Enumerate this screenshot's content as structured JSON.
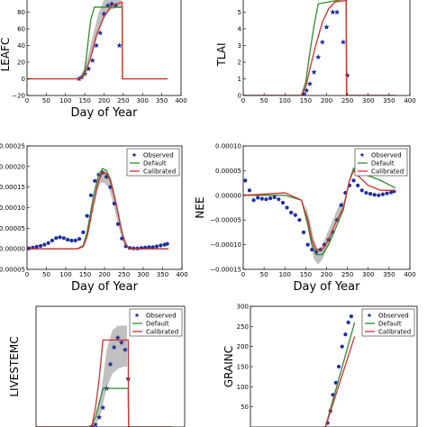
{
  "chart_data": [
    {
      "type": "line",
      "ylabel": "LEAFC",
      "xlabel": "Day of Year",
      "xlim": [
        0,
        400
      ],
      "ylim": [
        -20,
        100
      ],
      "xticks": [
        "0",
        "50",
        "100",
        "150",
        "200",
        "250",
        "300",
        "350",
        "400"
      ],
      "yticks": [
        "−20",
        "0",
        "20",
        "40",
        "60",
        "80"
      ],
      "legend": [],
      "band": {
        "x": [
          140,
          155,
          170,
          185,
          200,
          215,
          230,
          245
        ],
        "lo": [
          2,
          10,
          30,
          55,
          72,
          82,
          85,
          85
        ],
        "hi": [
          4,
          20,
          50,
          78,
          95,
          100,
          100,
          100
        ]
      },
      "series": [
        {
          "name": "Observed",
          "style": "star",
          "x": [
            135,
            142,
            150,
            160,
            170,
            180,
            190,
            200,
            210,
            220,
            230,
            240
          ],
          "y": [
            0,
            2,
            6,
            12,
            22,
            40,
            55,
            78,
            88,
            90,
            88,
            40
          ]
        },
        {
          "name": "Default",
          "style": "line",
          "x": [
            0,
            140,
            150,
            165,
            175,
            247,
            248,
            365
          ],
          "y": [
            0,
            0,
            10,
            70,
            86,
            86,
            0,
            0
          ]
        },
        {
          "name": "Calibrated",
          "style": "line",
          "x": [
            0,
            140,
            150,
            165,
            180,
            200,
            220,
            247,
            248,
            365
          ],
          "y": [
            0,
            0,
            6,
            25,
            52,
            75,
            88,
            92,
            0,
            0
          ]
        }
      ]
    },
    {
      "type": "line",
      "ylabel": "TLAI",
      "xlabel": "",
      "xlim": [
        0,
        400
      ],
      "ylim": [
        0,
        6
      ],
      "xticks": [
        "0",
        "50",
        "100",
        "150",
        "200",
        "250",
        "300",
        "350",
        "400"
      ],
      "yticks": [
        "0",
        "1",
        "2",
        "3",
        "4",
        "5"
      ],
      "legend": [],
      "band": null,
      "series": [
        {
          "name": "Observed",
          "style": "star",
          "x": [
            145,
            152,
            160,
            170,
            180,
            190,
            200,
            215,
            225,
            240,
            250
          ],
          "y": [
            0.1,
            0.3,
            0.7,
            1.4,
            2.3,
            3.2,
            4.1,
            5.0,
            5.0,
            3.2,
            1.2
          ]
        },
        {
          "name": "Default",
          "style": "line",
          "x": [
            0,
            140,
            150,
            160,
            170,
            180,
            247,
            248,
            365
          ],
          "y": [
            0,
            0,
            0.8,
            2.6,
            4.2,
            5.5,
            5.8,
            0,
            0
          ]
        },
        {
          "name": "Calibrated",
          "style": "line",
          "x": [
            0,
            140,
            150,
            160,
            175,
            190,
            205,
            220,
            247,
            248,
            365
          ],
          "y": [
            0,
            0,
            0.5,
            1.6,
            3.1,
            4.4,
            5.2,
            5.6,
            5.7,
            0,
            0
          ]
        }
      ]
    },
    {
      "type": "line",
      "ylabel": "GPP",
      "xlabel": "Day of Year",
      "xlim": [
        0,
        400
      ],
      "ylim": [
        -5e-05,
        0.00025
      ],
      "xticks": [
        "0",
        "50",
        "100",
        "150",
        "200",
        "250",
        "300",
        "350",
        "400"
      ],
      "yticks": [
        "−0.00005",
        "0.00000",
        "0.00005",
        "0.00010",
        "0.00015",
        "0.00020",
        "0.00025"
      ],
      "legend": [
        "Observed",
        "Default",
        "Calibrated"
      ],
      "band": {
        "x": [
          150,
          160,
          170,
          180,
          190,
          200,
          210,
          220,
          230,
          240,
          250,
          260
        ],
        "lo": [
          1e-05,
          4e-05,
          0.0001,
          0.00014,
          0.00016,
          0.00016,
          0.00015,
          0.00012,
          8e-05,
          4e-05,
          1e-05,
          5e-06
        ],
        "hi": [
          2e-05,
          6e-05,
          0.00013,
          0.00017,
          0.00019,
          0.00019,
          0.00018,
          0.00016,
          0.00012,
          7e-05,
          3e-05,
          1e-05
        ]
      },
      "series": [
        {
          "name": "Observed",
          "style": "dots",
          "x": [
            5,
            15,
            25,
            35,
            45,
            55,
            65,
            75,
            85,
            95,
            105,
            115,
            125,
            135,
            145,
            155,
            165,
            175,
            185,
            195,
            205,
            215,
            225,
            235,
            245,
            255,
            265,
            275,
            285,
            295,
            305,
            315,
            325,
            335,
            345,
            355,
            362
          ],
          "y": [
            1e-06,
            3e-06,
            5e-06,
            7e-06,
            1e-05,
            1.4e-05,
            2e-05,
            2.6e-05,
            2.8e-05,
            2.6e-05,
            2.2e-05,
            2e-05,
            2e-05,
            2.4e-05,
            4e-05,
            8e-05,
            0.00013,
            0.000165,
            0.00018,
            0.000185,
            0.000175,
            0.00015,
            0.00011,
            6e-05,
            2.5e-05,
            6e-06,
            2e-06,
            1e-06,
            1e-06,
            2e-06,
            3e-06,
            4e-06,
            4e-06,
            6e-06,
            8e-06,
            1e-05,
            1.2e-05
          ]
        },
        {
          "name": "Default",
          "style": "line",
          "x": [
            0,
            130,
            145,
            155,
            170,
            185,
            195,
            205,
            215,
            230,
            245,
            255,
            265,
            365
          ],
          "y": [
            0,
            0,
            8e-06,
            4e-05,
            0.00012,
            0.00018,
            0.000195,
            0.00019,
            0.00017,
            0.00011,
            4e-05,
            1e-05,
            0,
            0
          ]
        },
        {
          "name": "Calibrated",
          "style": "line",
          "x": [
            0,
            130,
            145,
            155,
            170,
            185,
            195,
            205,
            215,
            230,
            245,
            255,
            265,
            365
          ],
          "y": [
            0,
            0,
            5e-06,
            3e-05,
            0.0001,
            0.000165,
            0.000185,
            0.000183,
            0.000165,
            0.00011,
            4e-05,
            1e-05,
            0,
            0
          ]
        }
      ]
    },
    {
      "type": "line",
      "ylabel": "NEE",
      "xlabel": "Day of Year",
      "xlim": [
        0,
        400
      ],
      "ylim": [
        -0.00015,
        0.0001
      ],
      "xticks": [
        "0",
        "50",
        "100",
        "150",
        "200",
        "250",
        "300",
        "350",
        "400"
      ],
      "yticks": [
        "−0.00015",
        "−0.00010",
        "−0.00005",
        "0.00000",
        "0.00005",
        "0.00010"
      ],
      "legend": [
        "Observed",
        "Default",
        "Calibrated"
      ],
      "band": {
        "x": [
          150,
          160,
          170,
          180,
          190,
          200,
          210,
          220,
          230,
          240
        ],
        "lo": [
          -4e-05,
          -9e-05,
          -0.00013,
          -0.00014,
          -0.00013,
          -0.00011,
          -9e-05,
          -6e-05,
          -4e-05,
          -2e-05
        ],
        "hi": [
          -2e-05,
          -5e-05,
          -9e-05,
          -0.00011,
          -0.0001,
          -8e-05,
          -6e-05,
          -4e-05,
          -2e-05,
          -1e-05
        ]
      },
      "series": [
        {
          "name": "Observed",
          "style": "dots",
          "x": [
            5,
            15,
            25,
            35,
            45,
            55,
            65,
            75,
            85,
            95,
            105,
            115,
            125,
            135,
            145,
            155,
            165,
            175,
            185,
            195,
            205,
            215,
            225,
            235,
            245,
            255,
            265,
            275,
            285,
            295,
            305,
            315,
            325,
            335,
            345,
            355,
            362
          ],
          "y": [
            3e-05,
            1e-05,
            -1e-05,
            -5e-06,
            -7e-06,
            -8e-06,
            -6e-06,
            -4e-06,
            -8e-06,
            -1.5e-05,
            -2.5e-05,
            -3.5e-05,
            -4e-05,
            -5e-05,
            -7.5e-05,
            -0.0001,
            -0.00011,
            -0.000115,
            -0.00011,
            -0.0001,
            -9e-05,
            -7.5e-05,
            -5e-05,
            -2e-05,
            5e-06,
            2e-05,
            3e-05,
            2e-05,
            1e-05,
            5e-06,
            3e-06,
            1e-06,
            0,
            2e-06,
            4e-06,
            6e-06,
            8e-06
          ]
        },
        {
          "name": "Default",
          "style": "line",
          "x": [
            0,
            100,
            140,
            155,
            165,
            175,
            190,
            205,
            220,
            240,
            255,
            265,
            275,
            300,
            330,
            365
          ],
          "y": [
            0,
            0,
            -1e-05,
            -6e-05,
            -0.0001,
            -0.00012,
            -0.00012,
            -0.0001,
            -7e-05,
            -3e-05,
            3e-05,
            5.5e-05,
            4.5e-05,
            4e-05,
            3e-05,
            1.5e-05
          ]
        },
        {
          "name": "Calibrated",
          "style": "line",
          "x": [
            0,
            100,
            140,
            155,
            165,
            175,
            190,
            205,
            220,
            240,
            255,
            265,
            275,
            300,
            330,
            365
          ],
          "y": [
            0,
            5e-06,
            -1e-05,
            -5e-05,
            -9e-05,
            -0.00011,
            -0.00011,
            -9e-05,
            -6e-05,
            -2.5e-05,
            3e-05,
            5e-05,
            4e-05,
            2e-05,
            1e-05,
            1e-05
          ]
        }
      ]
    },
    {
      "type": "line",
      "ylabel": "LIVESTEMC",
      "xlabel": "",
      "xlim": [
        0,
        400
      ],
      "ylim": [
        0,
        250
      ],
      "xticks": [],
      "yticks": [],
      "legend": [
        "Observed",
        "Default",
        "Calibrated"
      ],
      "band": {
        "x": [
          160,
          175,
          190,
          205,
          220,
          235,
          245
        ],
        "lo": [
          0,
          30,
          80,
          110,
          120,
          125,
          125
        ],
        "hi": [
          10,
          70,
          160,
          200,
          210,
          210,
          210
        ]
      },
      "series": [
        {
          "name": "Observed",
          "style": "star",
          "x": [
            150,
            160,
            170,
            180,
            190,
            200,
            210,
            220,
            230,
            240,
            248
          ],
          "y": [
            1,
            5,
            20,
            40,
            80,
            130,
            165,
            185,
            175,
            160,
            100
          ]
        },
        {
          "name": "Default",
          "style": "line",
          "x": [
            0,
            150,
            160,
            170,
            180,
            248,
            249,
            365
          ],
          "y": [
            0,
            0,
            20,
            50,
            80,
            80,
            0,
            0
          ]
        },
        {
          "name": "Calibrated",
          "style": "line",
          "x": [
            0,
            150,
            160,
            170,
            180,
            248,
            249,
            365
          ],
          "y": [
            0,
            0,
            40,
            100,
            180,
            180,
            0,
            0
          ]
        }
      ]
    },
    {
      "type": "line",
      "ylabel": "GRAINC",
      "xlabel": "",
      "xlim": [
        0,
        400
      ],
      "ylim": [
        0,
        300
      ],
      "xticks": [],
      "yticks": [
        "50",
        "100",
        "150",
        "200",
        "250",
        "300"
      ],
      "legend": [
        "Observed",
        "Default",
        "Calibrated"
      ],
      "band": null,
      "series": [
        {
          "name": "Observed",
          "style": "dots",
          "x": [
            185,
            192,
            198,
            205,
            212,
            220,
            228,
            235,
            242
          ],
          "y": [
            10,
            40,
            80,
            110,
            150,
            200,
            230,
            260,
            275
          ]
        },
        {
          "name": "Default",
          "style": "line",
          "x": [
            180,
            250
          ],
          "y": [
            0,
            260
          ]
        },
        {
          "name": "Calibrated",
          "style": "line",
          "x": [
            180,
            250
          ],
          "y": [
            0,
            225
          ]
        }
      ]
    }
  ]
}
